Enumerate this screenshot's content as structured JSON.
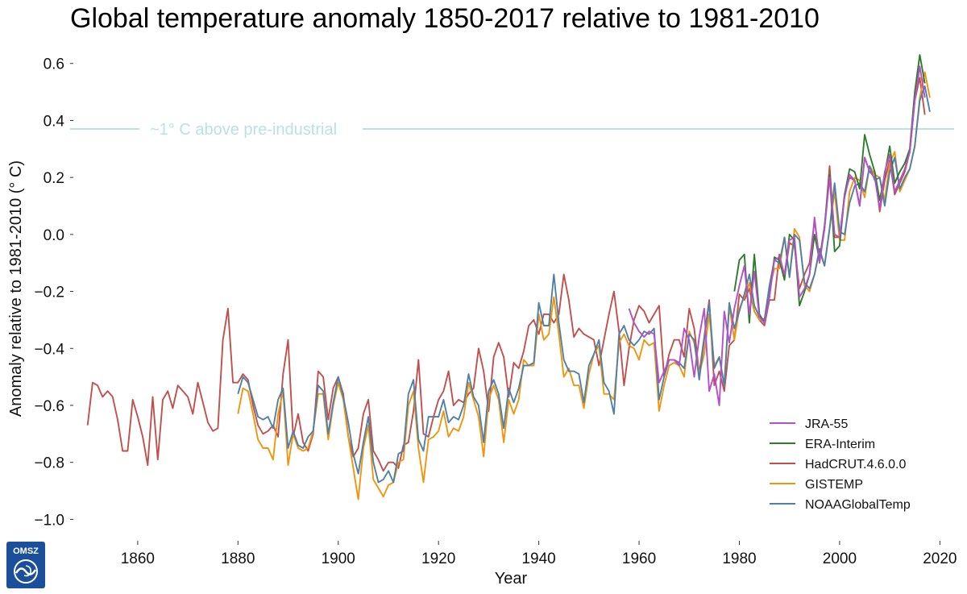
{
  "chart_data": {
    "type": "line",
    "title": "Global temperature anomaly 1850-2017 relative to 1981-2010",
    "xlabel": "Year",
    "ylabel": "Anomaly relative to 1981-2010 (° C)",
    "xlim": [
      1847,
      2023
    ],
    "ylim": [
      -1.03,
      0.67
    ],
    "xticks": [
      1860,
      1880,
      1900,
      1920,
      1940,
      1960,
      1980,
      2000,
      2020
    ],
    "xtick_labels": [
      "1860",
      "1880",
      "1900",
      "1920",
      "1940",
      "1960",
      "1980",
      "2000",
      "2020"
    ],
    "yticks": [
      0.6,
      0.4,
      0.2,
      0.0,
      -0.2,
      -0.4,
      -0.6,
      -0.8,
      -1.0
    ],
    "ytick_labels": [
      "0.6",
      "0.4",
      "0.2",
      "0.0",
      "−0.2",
      "−0.4",
      "−0.6",
      "−0.8",
      "−1.0"
    ],
    "grid": false,
    "legend_position": "bottom-right",
    "reference_line": {
      "y": 0.37,
      "label": "~1° C above pre-industrial",
      "color": "#b9e1e6"
    },
    "series": [
      {
        "name": "HadCRUT.4.6.0.0",
        "color": "#c0504d",
        "x_start": 1850,
        "values": [
          -0.67,
          -0.52,
          -0.53,
          -0.57,
          -0.55,
          -0.57,
          -0.65,
          -0.76,
          -0.76,
          -0.58,
          -0.64,
          -0.71,
          -0.81,
          -0.57,
          -0.79,
          -0.58,
          -0.55,
          -0.61,
          -0.53,
          -0.55,
          -0.57,
          -0.63,
          -0.52,
          -0.59,
          -0.66,
          -0.69,
          -0.68,
          -0.37,
          -0.26,
          -0.52,
          -0.52,
          -0.49,
          -0.51,
          -0.6,
          -0.67,
          -0.7,
          -0.69,
          -0.67,
          -0.71,
          -0.49,
          -0.37,
          -0.71,
          -0.63,
          -0.73,
          -0.76,
          -0.7,
          -0.48,
          -0.5,
          -0.65,
          -0.54,
          -0.5,
          -0.56,
          -0.71,
          -0.78,
          -0.75,
          -0.63,
          -0.58,
          -0.76,
          -0.79,
          -0.83,
          -0.8,
          -0.8,
          -0.82,
          -0.74,
          -0.73,
          -0.62,
          -0.44,
          -0.7,
          -0.71,
          -0.64,
          -0.58,
          -0.55,
          -0.48,
          -0.6,
          -0.58,
          -0.59,
          -0.56,
          -0.54,
          -0.4,
          -0.48,
          -0.62,
          -0.43,
          -0.38,
          -0.43,
          -0.57,
          -0.45,
          -0.47,
          -0.41,
          -0.32,
          -0.3,
          -0.35,
          -0.28,
          -0.28,
          -0.31,
          -0.28,
          -0.14,
          -0.23,
          -0.36,
          -0.33,
          -0.35,
          -0.36,
          -0.37,
          -0.46,
          -0.37,
          -0.28,
          -0.2,
          -0.34,
          -0.53,
          -0.4,
          -0.3,
          -0.25,
          -0.27,
          -0.31,
          -0.28,
          -0.25,
          -0.5,
          -0.42,
          -0.37,
          -0.37,
          -0.43,
          -0.26,
          -0.33,
          -0.49,
          -0.36,
          -0.23,
          -0.53,
          -0.48,
          -0.55,
          -0.39,
          -0.37,
          -0.21,
          -0.23,
          -0.19,
          -0.27,
          -0.3,
          -0.32,
          -0.23,
          -0.23,
          -0.07,
          -0.15,
          -0.03,
          -0.04,
          -0.19,
          -0.14,
          -0.1,
          0.05,
          -0.09,
          0.02,
          0.24,
          -0.01,
          -0.01,
          0.14,
          0.2,
          0.19,
          0.1,
          0.27,
          0.22,
          0.22,
          0.08,
          0.19,
          0.26,
          0.14,
          0.18,
          0.22,
          0.29,
          0.47,
          0.55,
          0.42
        ]
      },
      {
        "name": "GISTEMP",
        "color": "#f0950e",
        "x_start": 1880,
        "values": [
          -0.63,
          -0.54,
          -0.55,
          -0.63,
          -0.72,
          -0.75,
          -0.75,
          -0.79,
          -0.63,
          -0.55,
          -0.81,
          -0.7,
          -0.75,
          -0.76,
          -0.75,
          -0.69,
          -0.56,
          -0.56,
          -0.72,
          -0.6,
          -0.52,
          -0.58,
          -0.71,
          -0.82,
          -0.93,
          -0.75,
          -0.67,
          -0.86,
          -0.89,
          -0.92,
          -0.88,
          -0.87,
          -0.8,
          -0.79,
          -0.6,
          -0.55,
          -0.75,
          -0.87,
          -0.72,
          -0.71,
          -0.69,
          -0.62,
          -0.71,
          -0.68,
          -0.69,
          -0.64,
          -0.52,
          -0.58,
          -0.64,
          -0.78,
          -0.58,
          -0.53,
          -0.58,
          -0.73,
          -0.58,
          -0.63,
          -0.58,
          -0.44,
          -0.46,
          -0.46,
          -0.28,
          -0.37,
          -0.35,
          -0.22,
          -0.35,
          -0.5,
          -0.47,
          -0.53,
          -0.53,
          -0.61,
          -0.49,
          -0.42,
          -0.39,
          -0.56,
          -0.56,
          -0.58,
          -0.38,
          -0.35,
          -0.39,
          -0.4,
          -0.44,
          -0.37,
          -0.39,
          -0.38,
          -0.62,
          -0.53,
          -0.46,
          -0.45,
          -0.46,
          -0.5,
          -0.34,
          -0.38,
          -0.49,
          -0.42,
          -0.28,
          -0.46,
          -0.43,
          -0.53,
          -0.25,
          -0.37,
          -0.26,
          -0.22,
          -0.17,
          -0.27,
          -0.3,
          -0.3,
          -0.19,
          -0.12,
          -0.12,
          -0.01,
          -0.15,
          0.02,
          -0.01,
          -0.18,
          -0.2,
          -0.14,
          -0.06,
          -0.11,
          0.02,
          0.15,
          -0.02,
          -0.02,
          0.15,
          0.2,
          0.19,
          0.13,
          0.24,
          0.21,
          0.2,
          0.12,
          0.25,
          0.29,
          0.15,
          0.19,
          0.23,
          0.31,
          0.48,
          0.57,
          0.48
        ]
      },
      {
        "name": "NOAAGlobalTemp",
        "color": "#4f81a8",
        "x_start": 1880,
        "values": [
          -0.56,
          -0.5,
          -0.52,
          -0.58,
          -0.64,
          -0.65,
          -0.64,
          -0.68,
          -0.58,
          -0.54,
          -0.75,
          -0.69,
          -0.74,
          -0.75,
          -0.71,
          -0.69,
          -0.53,
          -0.55,
          -0.7,
          -0.59,
          -0.5,
          -0.57,
          -0.66,
          -0.77,
          -0.84,
          -0.73,
          -0.64,
          -0.8,
          -0.87,
          -0.86,
          -0.83,
          -0.87,
          -0.77,
          -0.76,
          -0.56,
          -0.51,
          -0.72,
          -0.76,
          -0.64,
          -0.64,
          -0.64,
          -0.58,
          -0.66,
          -0.64,
          -0.65,
          -0.6,
          -0.49,
          -0.57,
          -0.6,
          -0.73,
          -0.55,
          -0.51,
          -0.56,
          -0.68,
          -0.54,
          -0.59,
          -0.54,
          -0.46,
          -0.46,
          -0.45,
          -0.24,
          -0.32,
          -0.32,
          -0.14,
          -0.31,
          -0.44,
          -0.48,
          -0.48,
          -0.49,
          -0.59,
          -0.46,
          -0.42,
          -0.37,
          -0.52,
          -0.55,
          -0.63,
          -0.35,
          -0.32,
          -0.37,
          -0.39,
          -0.37,
          -0.34,
          -0.35,
          -0.33,
          -0.58,
          -0.5,
          -0.44,
          -0.44,
          -0.45,
          -0.47,
          -0.35,
          -0.37,
          -0.51,
          -0.37,
          -0.24,
          -0.47,
          -0.43,
          -0.53,
          -0.24,
          -0.33,
          -0.27,
          -0.21,
          -0.14,
          -0.25,
          -0.29,
          -0.3,
          -0.18,
          -0.09,
          -0.1,
          -0.01,
          -0.15,
          0.0,
          -0.02,
          -0.17,
          -0.19,
          -0.14,
          -0.05,
          -0.11,
          0.02,
          0.18,
          0.01,
          0.0,
          0.11,
          0.17,
          0.18,
          0.15,
          0.24,
          0.19,
          0.2,
          0.1,
          0.22,
          0.27,
          0.16,
          0.2,
          0.23,
          0.31,
          0.47,
          0.52,
          0.43
        ]
      },
      {
        "name": "ERA-Interim",
        "color": "#2b7d2b",
        "x_start": 1979,
        "values": [
          -0.2,
          -0.09,
          -0.07,
          -0.31,
          -0.07,
          -0.28,
          -0.31,
          -0.22,
          -0.08,
          -0.09,
          -0.16,
          0.0,
          -0.02,
          -0.25,
          -0.2,
          -0.14,
          0.0,
          -0.09,
          0.03,
          0.21,
          -0.06,
          -0.04,
          0.14,
          0.23,
          0.22,
          0.16,
          0.35,
          0.28,
          0.22,
          0.12,
          0.21,
          0.31,
          0.18,
          0.22,
          0.25,
          0.3,
          0.5,
          0.63,
          0.53
        ]
      },
      {
        "name": "JRA-55",
        "color": "#b450c8",
        "x_start": 1958,
        "values": [
          -0.26,
          -0.31,
          -0.34,
          -0.36,
          -0.34,
          -0.35,
          -0.52,
          -0.48,
          -0.44,
          -0.44,
          -0.46,
          -0.33,
          -0.37,
          -0.5,
          -0.36,
          -0.26,
          -0.55,
          -0.49,
          -0.6,
          -0.27,
          -0.38,
          -0.26,
          -0.18,
          -0.11,
          -0.28,
          -0.13,
          -0.29,
          -0.31,
          -0.22,
          -0.09,
          -0.08,
          -0.14,
          -0.02,
          -0.01,
          -0.22,
          -0.19,
          -0.14,
          0.06,
          -0.1,
          0.02,
          0.2,
          0.0,
          -0.01,
          0.13,
          0.21,
          0.19,
          0.1,
          0.27,
          0.22,
          0.2,
          0.09,
          0.22,
          0.28,
          0.15,
          0.19,
          0.23,
          0.29,
          0.47,
          0.59,
          0.48
        ]
      }
    ],
    "legend_order": [
      "JRA-55",
      "ERA-Interim",
      "HadCRUT.4.6.0.0",
      "GISTEMP",
      "NOAAGlobalTemp"
    ]
  },
  "logo": {
    "text": "OMSZ",
    "color": "#1b4f9c"
  }
}
